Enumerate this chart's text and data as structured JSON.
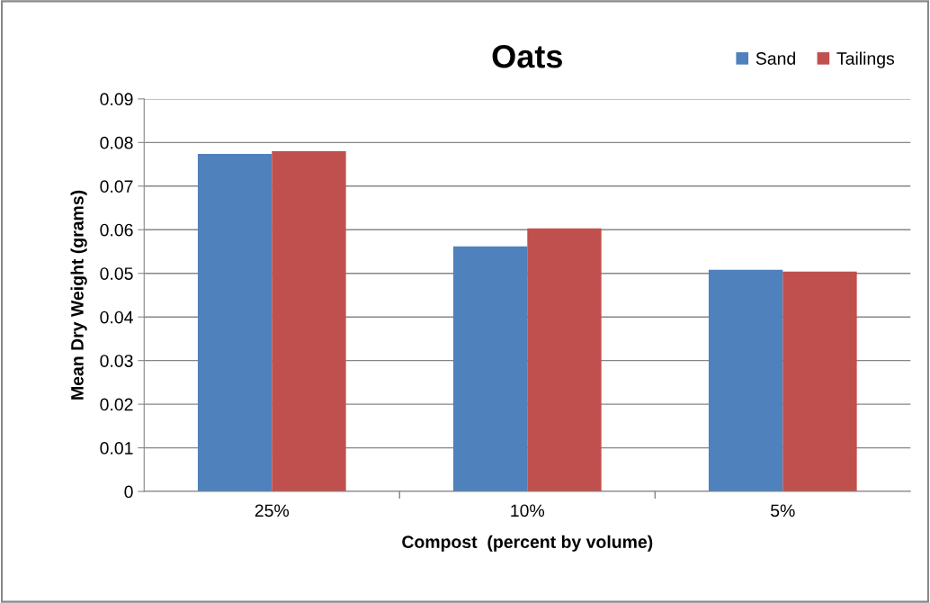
{
  "chart_data": {
    "type": "bar",
    "title": "Oats",
    "xlabel": "Compost  (percent by volume)",
    "ylabel": "Mean Dry Weight (grams)",
    "categories": [
      "25%",
      "10%",
      "5%"
    ],
    "series": [
      {
        "name": "Sand",
        "color": "#4f81bd",
        "values": [
          0.0774,
          0.0562,
          0.0508
        ]
      },
      {
        "name": "Tailings",
        "color": "#c0504d",
        "values": [
          0.078,
          0.0603,
          0.0504
        ]
      }
    ],
    "ylim": [
      0,
      0.09
    ],
    "yticks": [
      {
        "value": 0,
        "label": "0"
      },
      {
        "value": 0.01,
        "label": "0.01"
      },
      {
        "value": 0.02,
        "label": "0.02"
      },
      {
        "value": 0.03,
        "label": "0.03"
      },
      {
        "value": 0.04,
        "label": "0.04"
      },
      {
        "value": 0.05,
        "label": "0.05"
      },
      {
        "value": 0.06,
        "label": "0.06"
      },
      {
        "value": 0.07,
        "label": "0.07"
      },
      {
        "value": 0.08,
        "label": "0.08"
      },
      {
        "value": 0.09,
        "label": "0.09"
      }
    ],
    "grid": "y",
    "legend": "top right"
  }
}
